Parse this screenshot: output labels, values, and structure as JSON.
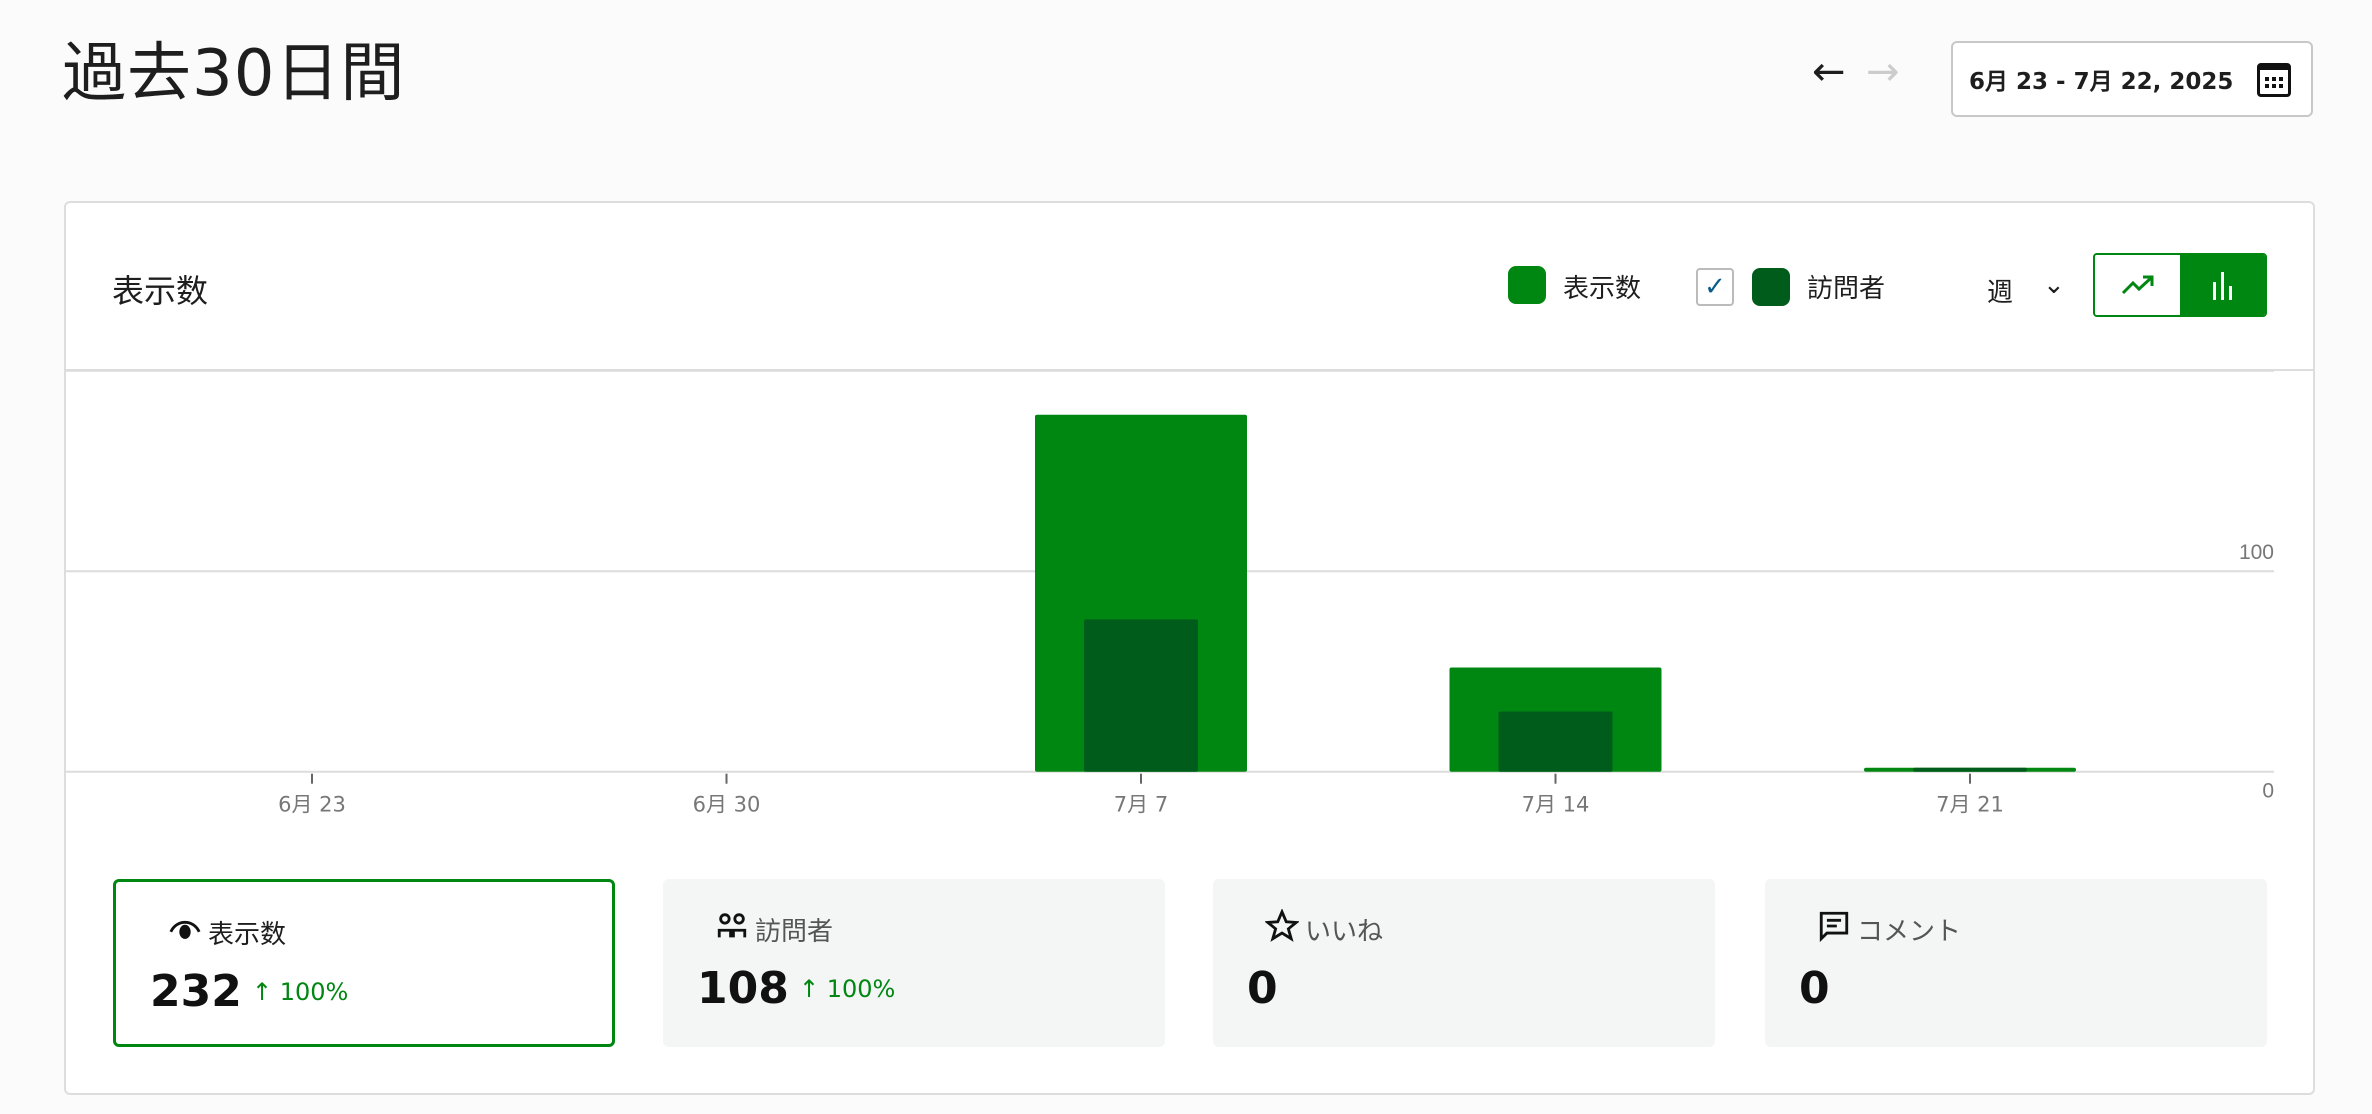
{
  "header": {
    "title": "過去30日間",
    "date_range": "6月 23 - 7月 22, 2025",
    "icons": {
      "back": "arrow-left-icon",
      "forward": "arrow-right-icon",
      "calendar": "calendar-icon"
    }
  },
  "card": {
    "title": "表示数",
    "legend": [
      {
        "label": "表示数",
        "color": "#008711"
      },
      {
        "label": "訪問者",
        "color": "#005c1a",
        "checked": true
      }
    ],
    "period": "週",
    "chart_toggle": {
      "selected": "bar",
      "options": [
        "line",
        "bar"
      ]
    }
  },
  "chart_data": {
    "type": "bar",
    "categories": [
      "6月 23",
      "6月 30",
      "7月 7",
      "7月 14",
      "7月 21"
    ],
    "series": [
      {
        "name": "表示数",
        "values": [
          0,
          0,
          178,
          52,
          2
        ],
        "color": "#008711"
      },
      {
        "name": "訪問者",
        "values": [
          0,
          0,
          76,
          30,
          2
        ],
        "color": "#005c1a"
      }
    ],
    "ylim": [
      0,
      200
    ],
    "yticks": [
      "0",
      "100",
      "200"
    ],
    "y_axis_position": "right",
    "grid": true
  },
  "stats": [
    {
      "label": "表示数",
      "icon": "eye-icon",
      "value": "232",
      "change": "↑ 100%",
      "selected": true
    },
    {
      "label": "訪問者",
      "icon": "people-icon",
      "value": "108",
      "change": "↑ 100%",
      "selected": false
    },
    {
      "label": "いいね",
      "icon": "star-icon",
      "value": "0",
      "change": "",
      "selected": false
    },
    {
      "label": "コメント",
      "icon": "comment-icon",
      "value": "0",
      "change": "",
      "selected": false
    }
  ]
}
